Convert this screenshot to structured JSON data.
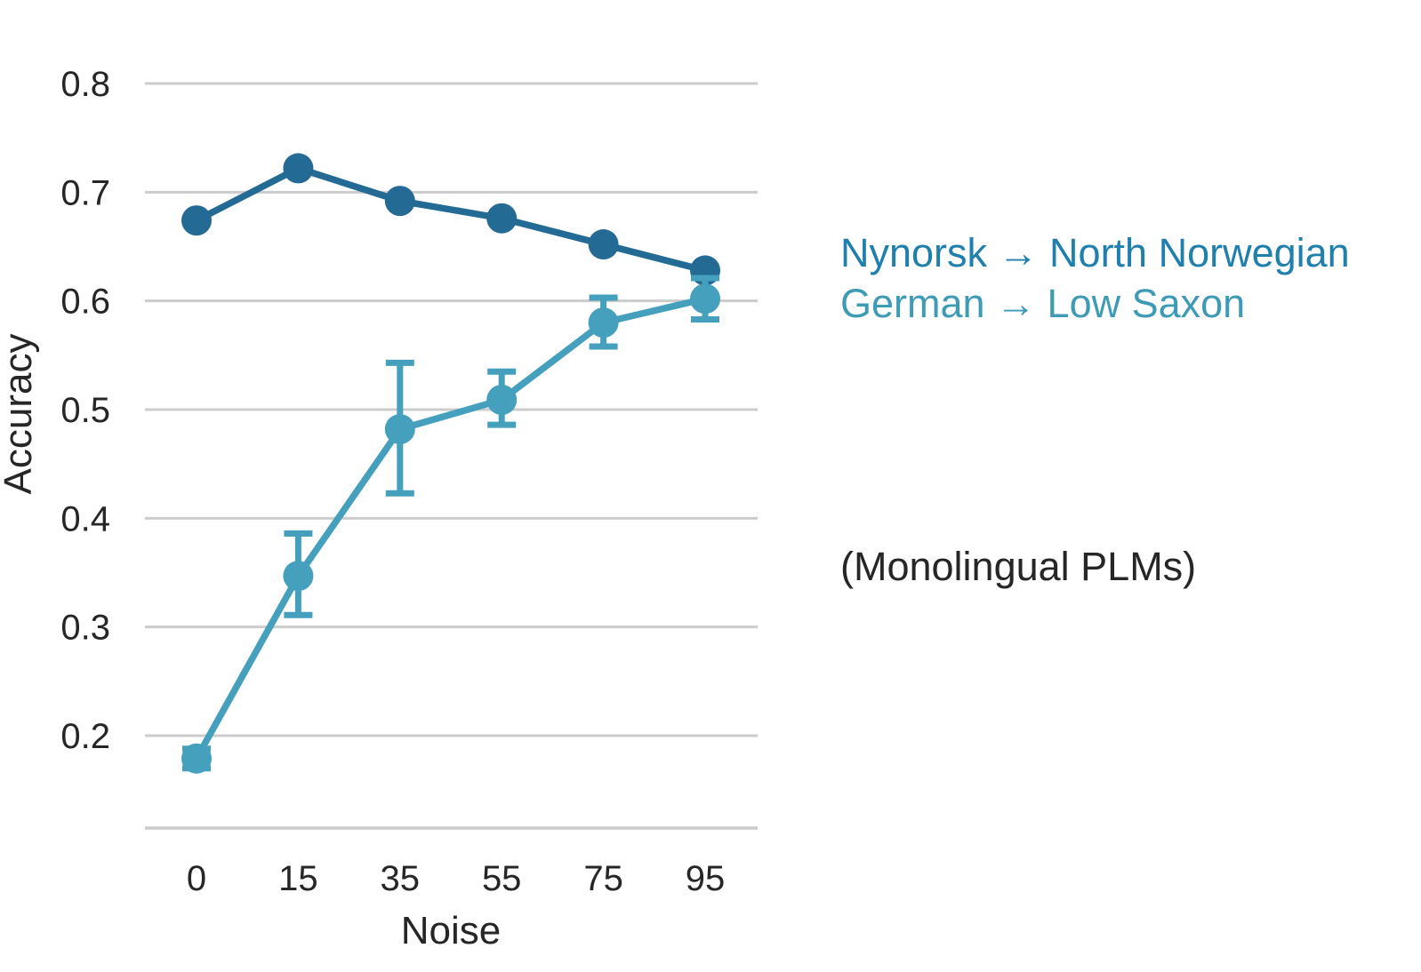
{
  "chart_data": {
    "type": "line",
    "xlabel": "Noise",
    "ylabel": "Accuracy",
    "categories": [
      "0",
      "15",
      "35",
      "55",
      "75",
      "95"
    ],
    "ylim": [
      0.115,
      0.8
    ],
    "yticks": [
      "0.2",
      "0.3",
      "0.4",
      "0.5",
      "0.6",
      "0.7",
      "0.8"
    ],
    "grid": "horizontal",
    "legend_placement": "right",
    "series": [
      {
        "name": "Nynorsk → North Norwegian",
        "color": "#236b94",
        "values": [
          0.674,
          0.722,
          0.692,
          0.676,
          0.652,
          0.628
        ],
        "error_low": [
          0.674,
          0.722,
          0.692,
          0.676,
          0.652,
          0.628
        ],
        "error_high": [
          0.674,
          0.722,
          0.692,
          0.676,
          0.652,
          0.628
        ]
      },
      {
        "name": "German → Low Saxon",
        "color": "#45a0bd",
        "values": [
          0.179,
          0.347,
          0.482,
          0.509,
          0.58,
          0.602
        ],
        "error_low": [
          0.17,
          0.311,
          0.423,
          0.486,
          0.558,
          0.583
        ],
        "error_high": [
          0.188,
          0.386,
          0.543,
          0.535,
          0.603,
          0.621
        ]
      }
    ],
    "annotations": [
      "(Monolingual PLMs)"
    ]
  }
}
